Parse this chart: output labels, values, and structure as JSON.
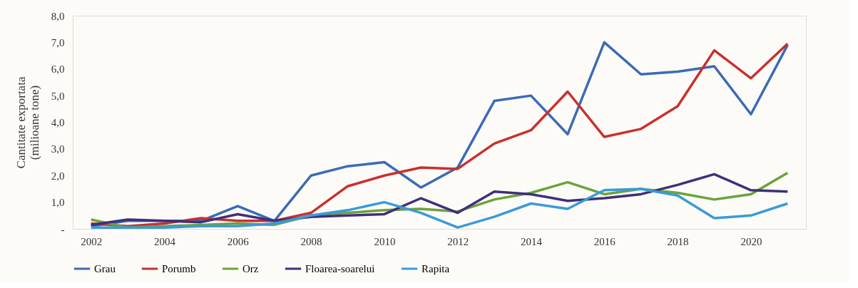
{
  "chart_data": {
    "type": "line",
    "ylabel": "Cantitate exportata\n(milioane tone)",
    "categories": [
      "2002",
      null,
      "2004",
      null,
      "2006",
      null,
      "2008",
      null,
      "2010",
      null,
      "2012",
      null,
      "2014",
      null,
      "2016",
      null,
      "2018",
      null,
      "2020",
      null
    ],
    "series": [
      {
        "name": "Grau",
        "color": "#3a6bb5",
        "values": [
          0.1,
          0.3,
          0.3,
          0.3,
          0.85,
          0.3,
          2.0,
          2.35,
          2.5,
          1.55,
          2.3,
          4.8,
          5.0,
          3.55,
          7.0,
          5.8,
          5.9,
          6.1,
          4.3,
          6.9
        ]
      },
      {
        "name": "Porumb",
        "color": "#c9302c",
        "values": [
          0.2,
          0.1,
          0.2,
          0.4,
          0.3,
          0.3,
          0.6,
          1.6,
          2.0,
          2.3,
          2.25,
          3.2,
          3.7,
          5.15,
          3.45,
          3.75,
          4.6,
          6.7,
          5.65,
          6.95
        ]
      },
      {
        "name": "Orz",
        "color": "#6aa33a",
        "values": [
          0.35,
          0.05,
          0.1,
          0.15,
          0.2,
          0.15,
          0.5,
          0.6,
          0.7,
          0.75,
          0.65,
          1.1,
          1.35,
          1.75,
          1.3,
          1.5,
          1.35,
          1.1,
          1.3,
          2.1
        ]
      },
      {
        "name": "Floarea-soarelui",
        "color": "#3f2f7a",
        "values": [
          0.15,
          0.35,
          0.3,
          0.25,
          0.55,
          0.3,
          0.45,
          0.5,
          0.55,
          1.15,
          0.6,
          1.4,
          1.3,
          1.05,
          1.15,
          1.3,
          1.65,
          2.05,
          1.45,
          1.4
        ]
      },
      {
        "name": "Rapita",
        "color": "#3a9ad9",
        "values": [
          0.05,
          0.05,
          0.05,
          0.1,
          0.1,
          0.2,
          0.5,
          0.7,
          1.0,
          0.6,
          0.05,
          0.45,
          0.95,
          0.75,
          1.45,
          1.5,
          1.25,
          0.4,
          0.5,
          0.95
        ]
      }
    ],
    "ylim": [
      0,
      8
    ],
    "yticks": [
      {
        "value": 0,
        "label": "-"
      },
      {
        "value": 1,
        "label": "1,0"
      },
      {
        "value": 2,
        "label": "2,0"
      },
      {
        "value": 3,
        "label": "3,0"
      },
      {
        "value": 4,
        "label": "4,0"
      },
      {
        "value": 5,
        "label": "5,0"
      },
      {
        "value": 6,
        "label": "6,0"
      },
      {
        "value": 7,
        "label": "7,0"
      },
      {
        "value": 8,
        "label": "8,0"
      }
    ],
    "grid": false,
    "legend": "bottom",
    "marker": "none",
    "line_style": "solid"
  }
}
